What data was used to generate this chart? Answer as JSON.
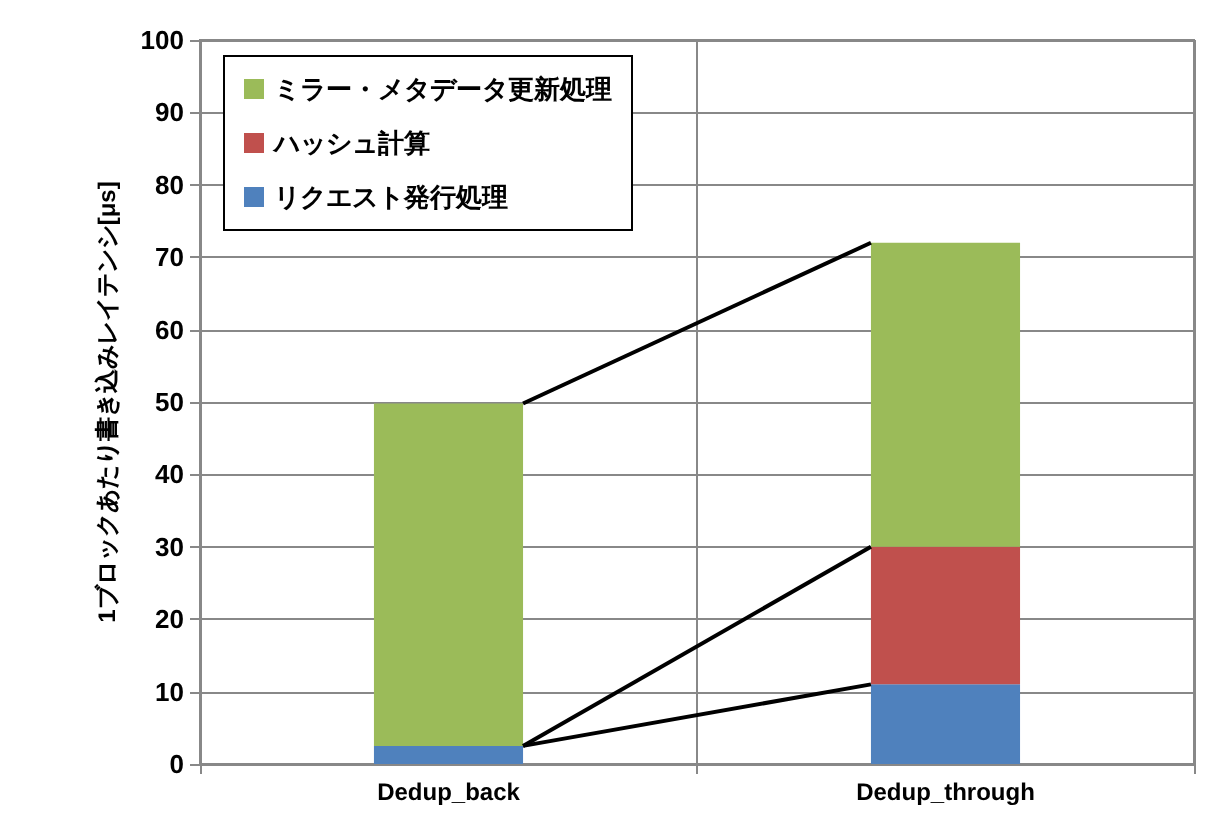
{
  "chart_data": {
    "type": "bar",
    "stacked": true,
    "ylabel": "1ブロックあたり書き込みレイテンシ[μs]",
    "categories": [
      "Dedup_back",
      "Dedup_through"
    ],
    "series": [
      {
        "name": "リクエスト発行処理",
        "color": "#4f81bd",
        "values": [
          2.5,
          11
        ]
      },
      {
        "name": "ハッシュ計算",
        "color": "#c0504d",
        "values": [
          0,
          19
        ]
      },
      {
        "name": "ミラー・メタデータ更新処理",
        "color": "#9bbb59",
        "values": [
          47.3,
          42
        ]
      }
    ],
    "ylim": [
      0,
      100
    ],
    "yticks": [
      0,
      10,
      20,
      30,
      40,
      50,
      60,
      70,
      80,
      90,
      100
    ],
    "grid": true,
    "legend": "top left"
  }
}
